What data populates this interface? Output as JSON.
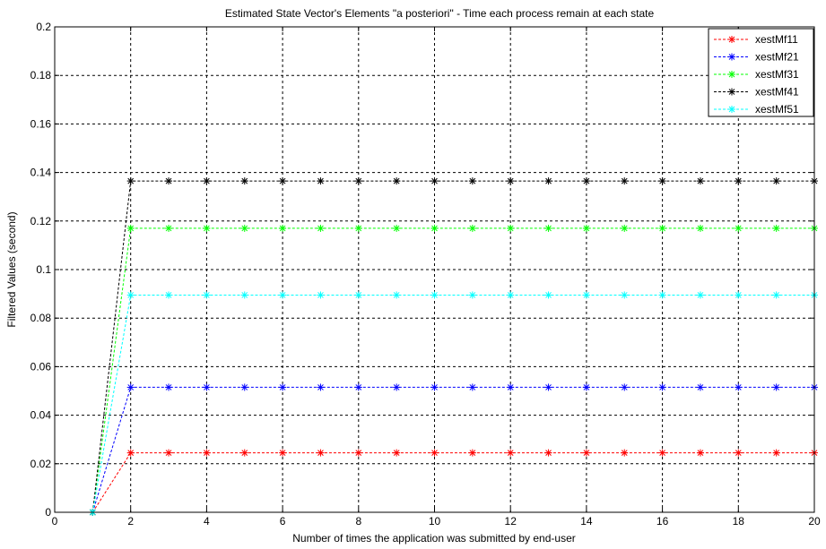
{
  "chart_data": {
    "type": "line",
    "title": "Estimated State Vector's Elements \"a posteriori\" - Time each process remain at each state",
    "xlabel": "Number of times the application was submitted by end-user",
    "ylabel": "Filtered Values (second)",
    "xlim": [
      0,
      20
    ],
    "ylim": [
      0,
      0.2
    ],
    "x_ticks": [
      "0",
      "2",
      "4",
      "6",
      "8",
      "10",
      "12",
      "14",
      "16",
      "18",
      "20"
    ],
    "y_ticks": [
      "0",
      "0.02",
      "0.04",
      "0.06",
      "0.08",
      "0.1",
      "0.12",
      "0.14",
      "0.16",
      "0.18",
      "0.2"
    ],
    "grid": true,
    "legend_position": "top-right",
    "x": [
      1,
      2,
      3,
      4,
      5,
      6,
      7,
      8,
      9,
      10,
      11,
      12,
      13,
      14,
      15,
      16,
      17,
      18,
      19,
      20
    ],
    "series": [
      {
        "name": "xestMf11",
        "color": "#ff0000",
        "values": [
          0,
          0.0245,
          0.0245,
          0.0245,
          0.0245,
          0.0245,
          0.0245,
          0.0245,
          0.0245,
          0.0245,
          0.0245,
          0.0245,
          0.0245,
          0.0245,
          0.0245,
          0.0245,
          0.0245,
          0.0245,
          0.0245,
          0.0245
        ]
      },
      {
        "name": "xestMf21",
        "color": "#0000ff",
        "values": [
          0,
          0.0515,
          0.0515,
          0.0515,
          0.0515,
          0.0515,
          0.0515,
          0.0515,
          0.0515,
          0.0515,
          0.0515,
          0.0515,
          0.0515,
          0.0515,
          0.0515,
          0.0515,
          0.0515,
          0.0515,
          0.0515,
          0.0515
        ]
      },
      {
        "name": "xestMf31",
        "color": "#00ff00",
        "values": [
          0,
          0.117,
          0.117,
          0.117,
          0.117,
          0.117,
          0.117,
          0.117,
          0.117,
          0.117,
          0.117,
          0.117,
          0.117,
          0.117,
          0.117,
          0.117,
          0.117,
          0.117,
          0.117,
          0.117
        ]
      },
      {
        "name": "xestMf41",
        "color": "#000000",
        "values": [
          0,
          0.1365,
          0.1365,
          0.1365,
          0.1365,
          0.1365,
          0.1365,
          0.1365,
          0.1365,
          0.1365,
          0.1365,
          0.1365,
          0.1365,
          0.1365,
          0.1365,
          0.1365,
          0.1365,
          0.1365,
          0.1365,
          0.1365
        ]
      },
      {
        "name": "xestMf51",
        "color": "#00ffff",
        "values": [
          0,
          0.0895,
          0.0895,
          0.0895,
          0.0895,
          0.0895,
          0.0895,
          0.0895,
          0.0895,
          0.0895,
          0.0895,
          0.0895,
          0.0895,
          0.0895,
          0.0895,
          0.0895,
          0.0895,
          0.0895,
          0.0895,
          0.0895
        ]
      }
    ]
  }
}
